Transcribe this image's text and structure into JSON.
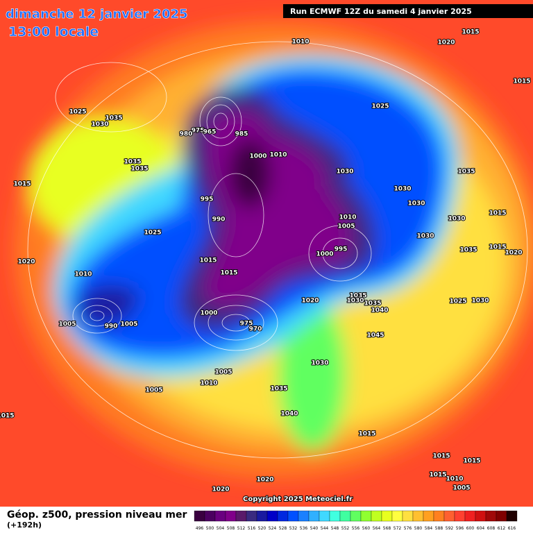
{
  "header": {
    "title": "dimanche 12 janvier 2025",
    "subtitle": "13:00 locale",
    "run": "Run ECMWF 12Z du samedi 4 janvier 2025"
  },
  "footer": {
    "copyright": "Copyright 2025 Meteociel.fr",
    "caption": "Géop. z500, pression niveau mer",
    "lead": "(+192h)"
  },
  "colorbar": {
    "labels": [
      "496",
      "500",
      "504",
      "508",
      "512",
      "516",
      "520",
      "524",
      "528",
      "532",
      "536",
      "540",
      "544",
      "548",
      "552",
      "556",
      "560",
      "564",
      "568",
      "572",
      "576",
      "580",
      "584",
      "588",
      "592",
      "596",
      "600",
      "604",
      "608",
      "612",
      "616"
    ],
    "colors": [
      "#3a0040",
      "#4b0060",
      "#6a0080",
      "#80008a",
      "#5a1a6a",
      "#3a2a80",
      "#1a1aa0",
      "#0000c8",
      "#0028e0",
      "#0050ff",
      "#1a80ff",
      "#30b0ff",
      "#40d8ff",
      "#40ffe0",
      "#40ffa0",
      "#60ff60",
      "#90ff30",
      "#c0ff20",
      "#e8ff20",
      "#ffff40",
      "#ffe040",
      "#ffc030",
      "#ffa020",
      "#ff8020",
      "#ff6030",
      "#ff4030",
      "#f02020",
      "#d01010",
      "#a00808",
      "#800000",
      "#200000"
    ]
  },
  "isobar_labels": [
    "1010",
    "1015",
    "1020",
    "1015",
    "1025",
    "1035",
    "1030",
    "1025",
    "975",
    "965",
    "980",
    "985",
    "1000",
    "1010",
    "1035",
    "1035",
    "1015",
    "1030",
    "1030",
    "1035",
    "1030",
    "1015",
    "995",
    "990",
    "1010",
    "1005",
    "1030",
    "1030",
    "1035",
    "1015",
    "1020",
    "995",
    "1000",
    "1025",
    "1010",
    "1020",
    "1015",
    "1015",
    "1020",
    "1035",
    "1030",
    "1035",
    "1040",
    "1025",
    "1030",
    "1045",
    "1000",
    "975",
    "970",
    "1005",
    "990",
    "1005",
    "1005",
    "1010",
    "1005",
    "1035",
    "1030",
    "1040",
    "1015",
    "1015",
    "1015",
    "1015",
    "1010",
    "1020",
    "1020",
    "1005",
    "1015"
  ]
}
